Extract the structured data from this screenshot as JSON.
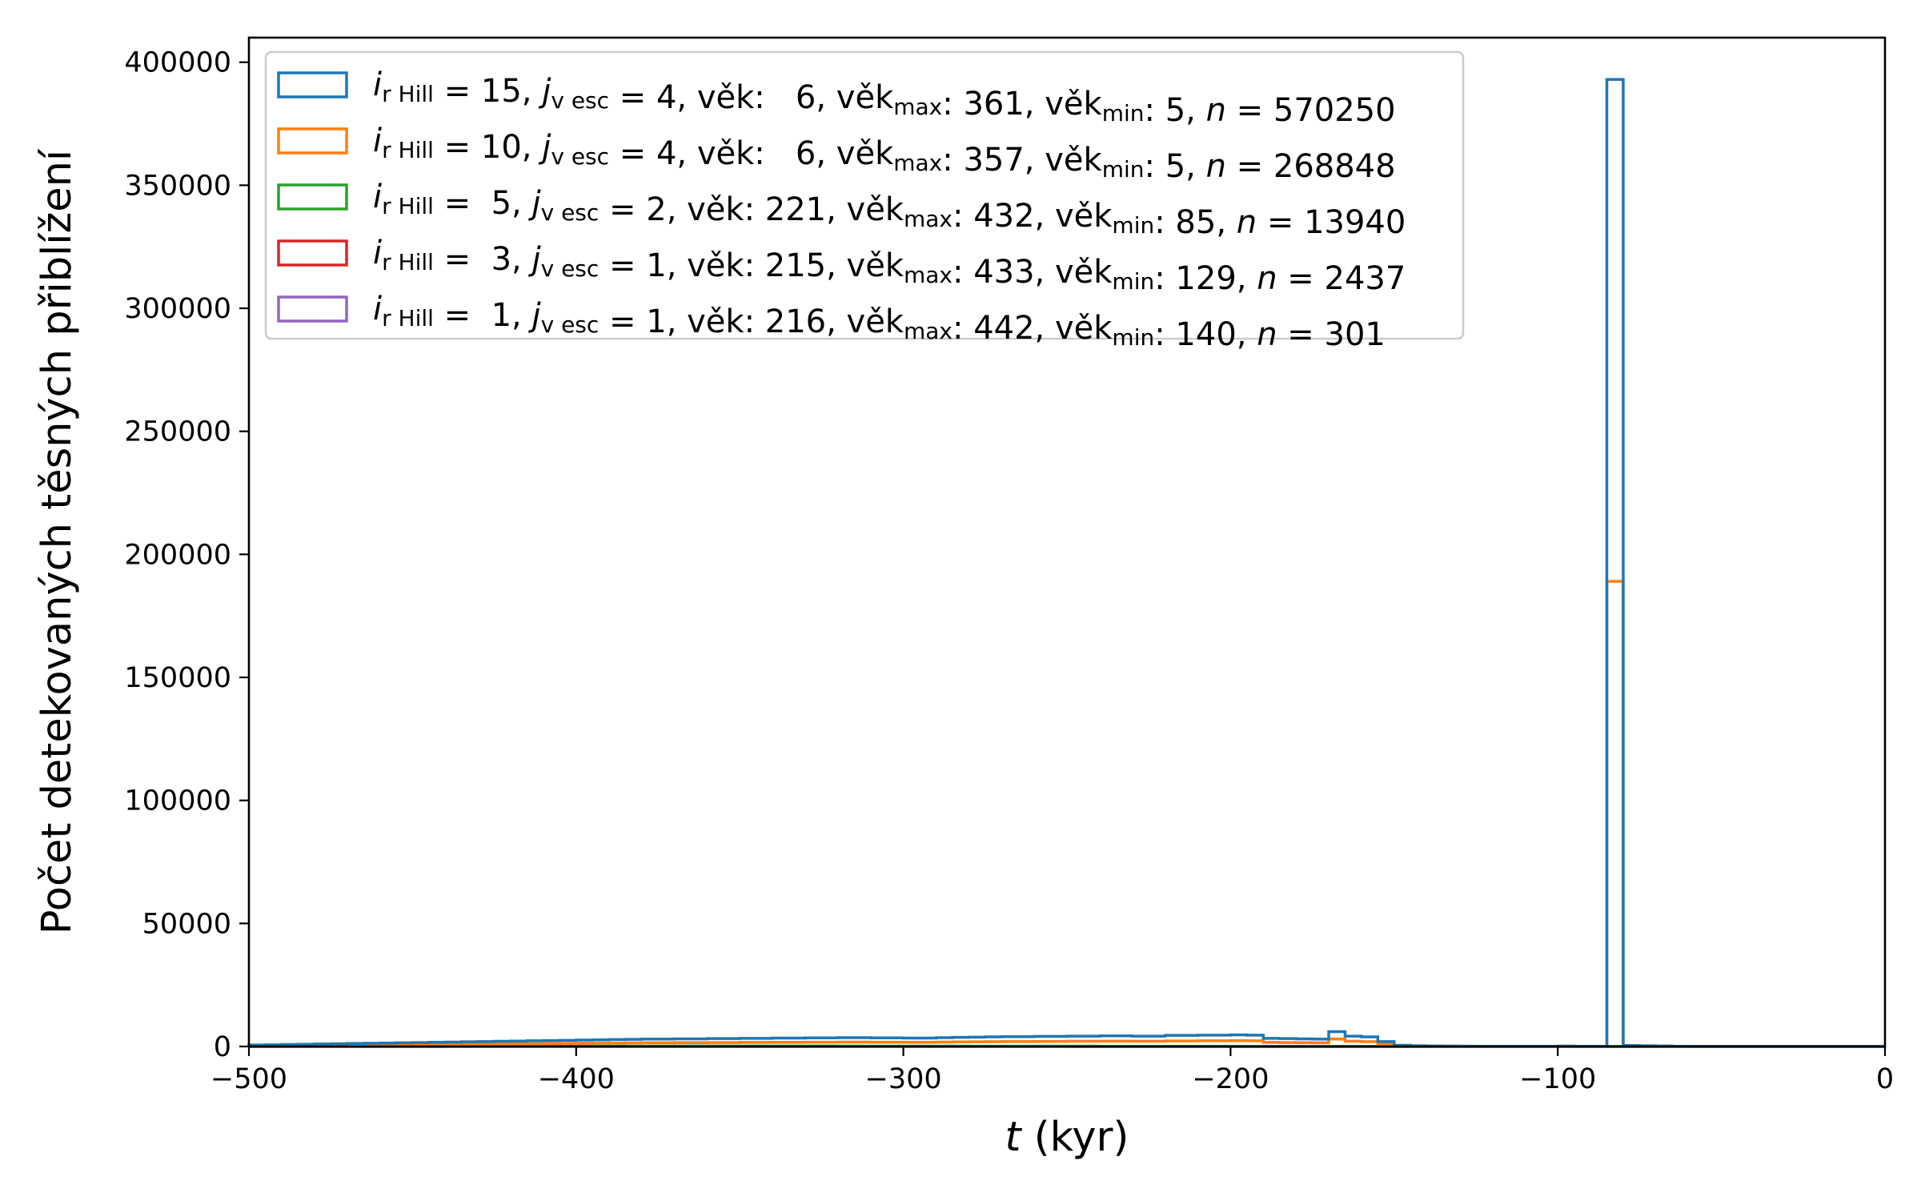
{
  "chart_data": {
    "type": "histogram-step",
    "xlabel_var": "t",
    "xlabel_unit": "(kyr)",
    "ylabel": "Počet detekovaných těsných přiblížení",
    "xlim": [
      -500,
      0
    ],
    "ylim": [
      0,
      410000
    ],
    "xticks": [
      -500,
      -400,
      -300,
      -200,
      -100,
      0
    ],
    "xtick_labels": [
      "−500",
      "−400",
      "−300",
      "−200",
      "−100",
      "0"
    ],
    "yticks": [
      0,
      50000,
      100000,
      150000,
      200000,
      250000,
      300000,
      350000,
      400000
    ],
    "ytick_labels": [
      "0",
      "50000",
      "100000",
      "150000",
      "200000",
      "250000",
      "300000",
      "350000",
      "400000"
    ],
    "bin_width": 5,
    "legend_position": "top-left",
    "series": [
      {
        "color": "#1f77b4",
        "label": {
          "i": "15",
          "j": "4",
          "vek": "6",
          "vek_max": "361",
          "vek_min": "5",
          "n": "570250"
        },
        "bins_from": -500,
        "counts": [
          600,
          700,
          800,
          900,
          1000,
          1100,
          1200,
          1300,
          1400,
          1500,
          1600,
          1700,
          1800,
          1900,
          2000,
          2100,
          2200,
          2300,
          2400,
          2500,
          2600,
          2700,
          2800,
          2900,
          3000,
          3000,
          3100,
          3100,
          3200,
          3200,
          3300,
          3300,
          3400,
          3400,
          3500,
          3500,
          3600,
          3600,
          3500,
          3500,
          3400,
          3400,
          3600,
          3700,
          3800,
          3900,
          4000,
          4000,
          4100,
          4100,
          4200,
          4200,
          4300,
          4300,
          4200,
          4200,
          4500,
          4500,
          4600,
          4600,
          4700,
          4600,
          3300,
          3200,
          3100,
          3000,
          6000,
          4200,
          3900,
          2000,
          500,
          300,
          200,
          150,
          120,
          100,
          100,
          100,
          100,
          100,
          150,
          100,
          100,
          393000,
          400,
          300,
          200,
          100,
          50,
          30,
          20,
          10,
          0,
          0,
          0,
          0,
          0,
          0,
          0,
          0
        ]
      },
      {
        "color": "#ff7f0e",
        "label": {
          "i": "10",
          "j": "4",
          "vek": "6",
          "vek_max": "357",
          "vek_min": "5",
          "n": "268848"
        },
        "bins_from": -500,
        "counts": [
          300,
          350,
          400,
          450,
          500,
          550,
          600,
          650,
          700,
          750,
          800,
          850,
          900,
          950,
          1000,
          1050,
          1100,
          1150,
          1200,
          1250,
          1300,
          1350,
          1400,
          1450,
          1500,
          1500,
          1550,
          1550,
          1600,
          1600,
          1650,
          1650,
          1700,
          1700,
          1750,
          1750,
          1800,
          1800,
          1750,
          1750,
          1700,
          1700,
          1800,
          1850,
          1900,
          1950,
          2000,
          2000,
          2050,
          2050,
          2100,
          2100,
          2150,
          2150,
          2100,
          2100,
          2250,
          2250,
          2300,
          2300,
          2350,
          2300,
          1650,
          1600,
          1550,
          1500,
          3000,
          2100,
          1950,
          1000,
          250,
          150,
          100,
          75,
          60,
          50,
          50,
          50,
          50,
          50,
          75,
          50,
          50,
          189000,
          200,
          150,
          100,
          50,
          25,
          15,
          10,
          5,
          0,
          0,
          0,
          0,
          0,
          0,
          0,
          0
        ]
      },
      {
        "color": "#2ca02c",
        "label": {
          "i": " 5",
          "j": "2",
          "vek": "221",
          "vek_max": "432",
          "vek_min": "85",
          "n": "13940"
        },
        "bins_from": -500,
        "counts": [
          60,
          60,
          70,
          70,
          80,
          80,
          90,
          90,
          100,
          100,
          110,
          110,
          120,
          120,
          130,
          130,
          140,
          140,
          150,
          150,
          160,
          160,
          170,
          170,
          180,
          180,
          190,
          190,
          200,
          200,
          210,
          210,
          200,
          200,
          190,
          190,
          180,
          180,
          170,
          170,
          160,
          160,
          150,
          150,
          140,
          140,
          130,
          130,
          120,
          120,
          110,
          110,
          100,
          100,
          90,
          90,
          80,
          80,
          70,
          70,
          60,
          60,
          50,
          50,
          40,
          40,
          30,
          30,
          20,
          20,
          10,
          10,
          5,
          5,
          0,
          0,
          0,
          0,
          0,
          0,
          0,
          0,
          0,
          0,
          0,
          0,
          0,
          0,
          0,
          0,
          0,
          0,
          0,
          0,
          0,
          0,
          0,
          0,
          0,
          0
        ]
      },
      {
        "color": "#d62728",
        "label": {
          "i": " 3",
          "j": "1",
          "vek": "215",
          "vek_max": "433",
          "vek_min": "129",
          "n": "2437"
        },
        "bins_from": -500,
        "counts": [
          10,
          10,
          12,
          12,
          14,
          14,
          16,
          16,
          18,
          18,
          20,
          20,
          22,
          22,
          24,
          24,
          26,
          26,
          28,
          28,
          30,
          30,
          32,
          32,
          34,
          34,
          36,
          36,
          38,
          38,
          40,
          40,
          38,
          38,
          36,
          36,
          34,
          34,
          32,
          32,
          30,
          30,
          28,
          28,
          26,
          26,
          24,
          24,
          22,
          22,
          20,
          20,
          18,
          18,
          16,
          16,
          14,
          14,
          12,
          12,
          10,
          10,
          8,
          8,
          6,
          6,
          4,
          4,
          2,
          2,
          0,
          0,
          0,
          0,
          0,
          0,
          0,
          0,
          0,
          0,
          0,
          0,
          0,
          0,
          0,
          0,
          0,
          0,
          0,
          0,
          0,
          0,
          0,
          0,
          0,
          0,
          0,
          0,
          0,
          0
        ]
      },
      {
        "color": "#9467bd",
        "label": {
          "i": " 1",
          "j": "1",
          "vek": "216",
          "vek_max": "442",
          "vek_min": "140",
          "n": "301"
        },
        "bins_from": -500,
        "counts": [
          1,
          1,
          2,
          2,
          2,
          2,
          3,
          3,
          3,
          3,
          4,
          4,
          4,
          4,
          5,
          5,
          5,
          5,
          5,
          5,
          6,
          6,
          6,
          6,
          6,
          6,
          7,
          7,
          7,
          7,
          7,
          7,
          6,
          6,
          6,
          6,
          5,
          5,
          5,
          5,
          4,
          4,
          4,
          4,
          3,
          3,
          3,
          3,
          2,
          2,
          2,
          2,
          1,
          1,
          1,
          1,
          1,
          1,
          0,
          0,
          0,
          0,
          0,
          0,
          0,
          0,
          0,
          0,
          0,
          0,
          0,
          0,
          0,
          0,
          0,
          0,
          0,
          0,
          0,
          0,
          0,
          0,
          0,
          0,
          0,
          0,
          0,
          0,
          0,
          0,
          0,
          0,
          0,
          0,
          0,
          0,
          0,
          0,
          0,
          0
        ]
      }
    ]
  }
}
